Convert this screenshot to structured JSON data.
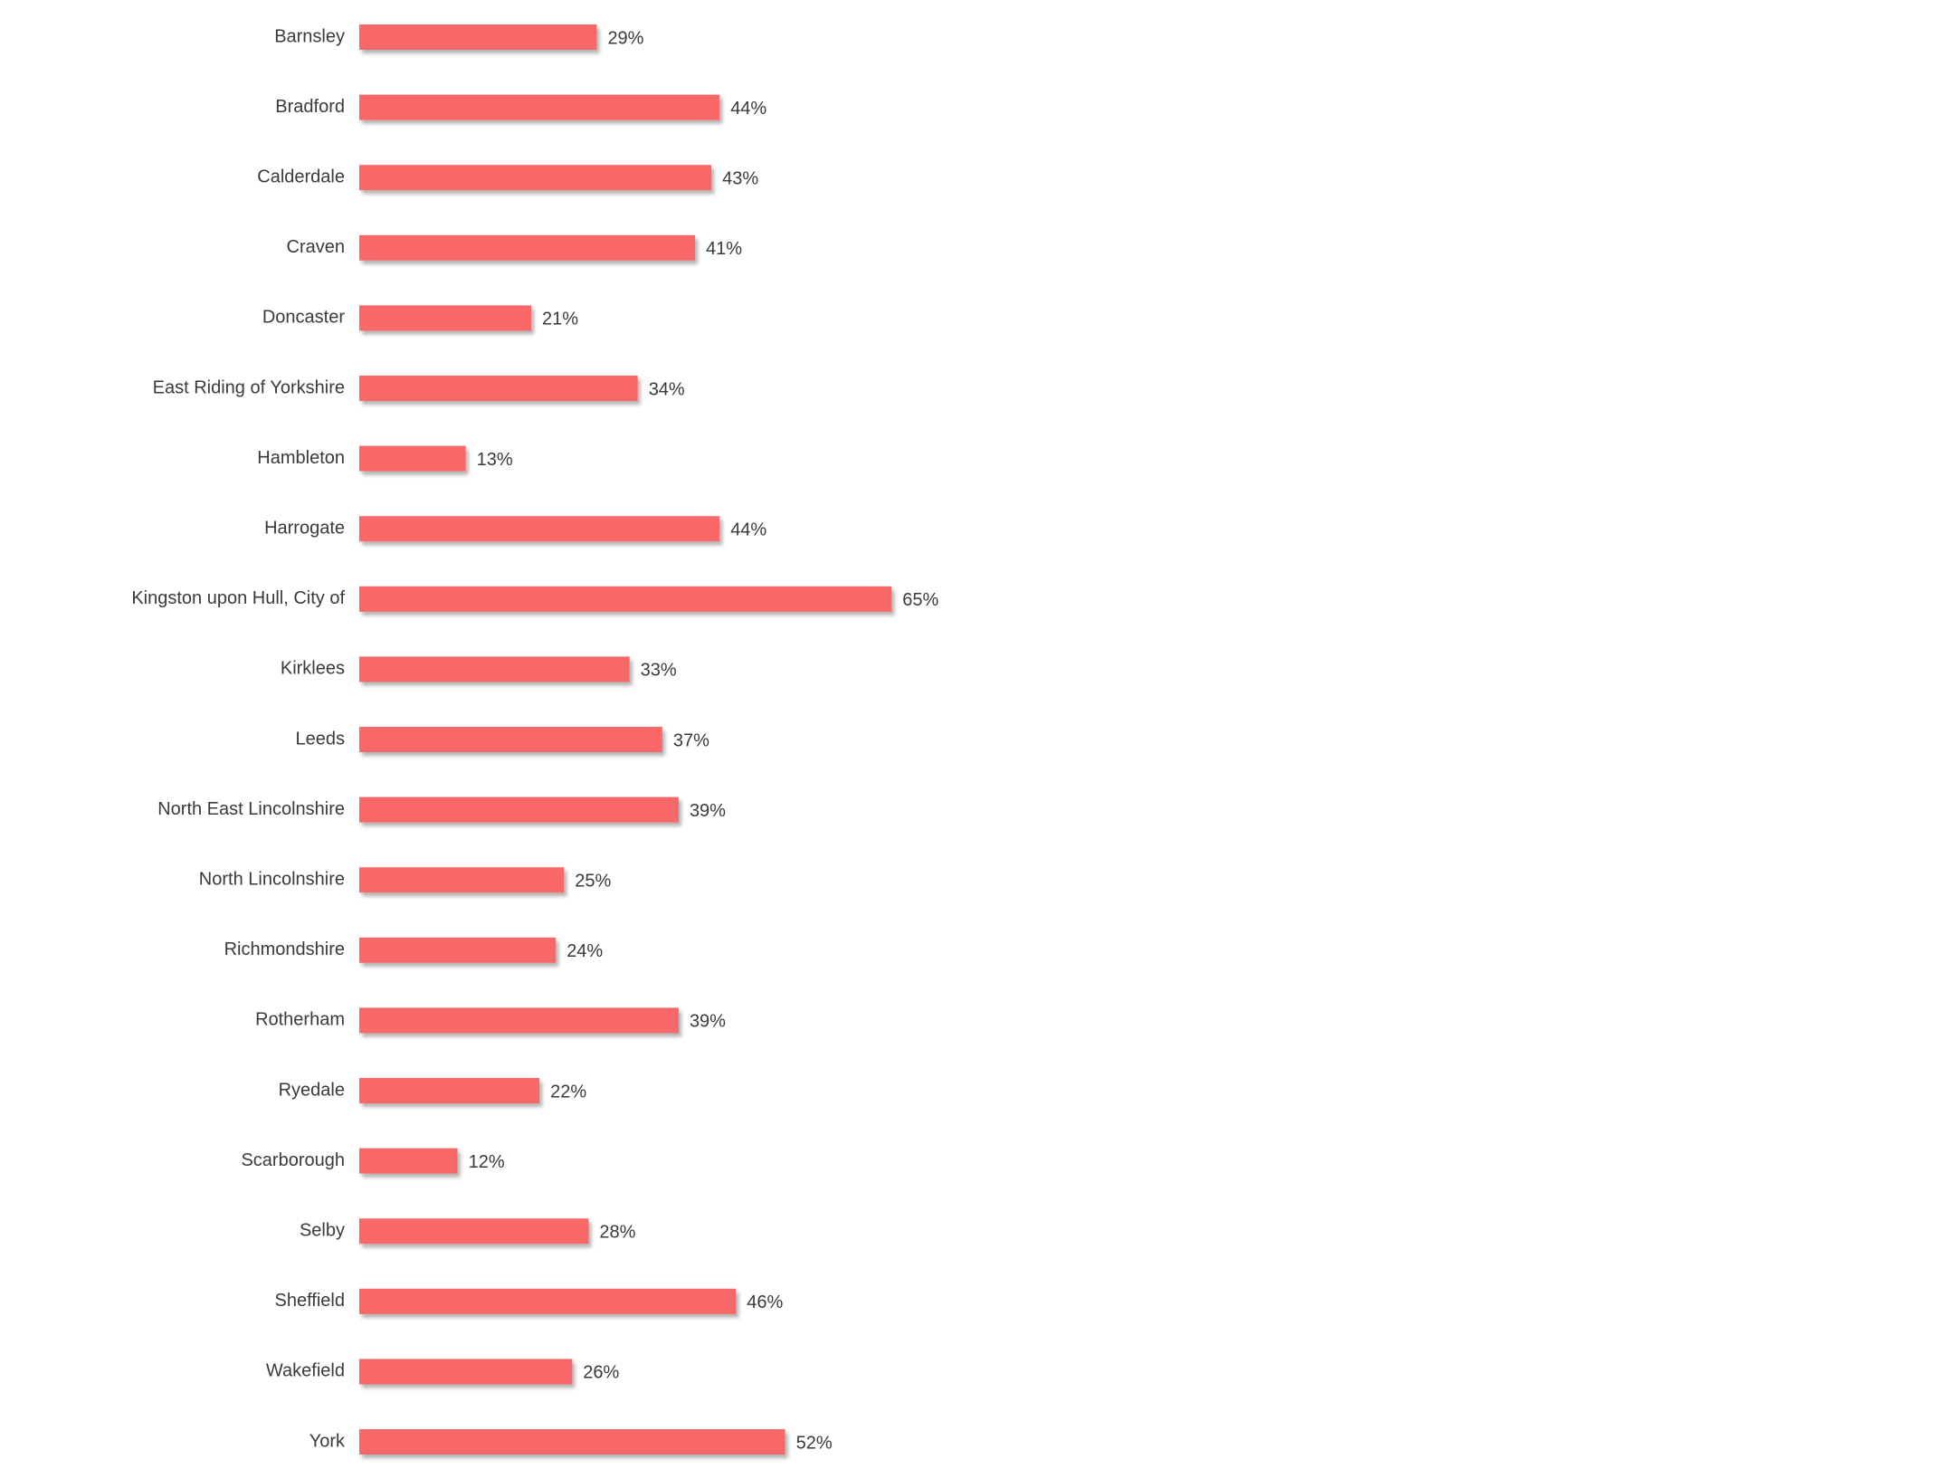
{
  "chart_data": {
    "type": "bar",
    "orientation": "horizontal",
    "categories": [
      "Barnsley",
      "Bradford",
      "Calderdale",
      "Craven",
      "Doncaster",
      "East Riding of Yorkshire",
      "Hambleton",
      "Harrogate",
      "Kingston upon Hull, City of",
      "Kirklees",
      "Leeds",
      "North East Lincolnshire",
      "North Lincolnshire",
      "Richmondshire",
      "Rotherham",
      "Ryedale",
      "Scarborough",
      "Selby",
      "Sheffield",
      "Wakefield",
      "York"
    ],
    "values": [
      29,
      44,
      43,
      41,
      21,
      34,
      13,
      44,
      65,
      33,
      37,
      39,
      25,
      24,
      39,
      22,
      12,
      28,
      46,
      26,
      52
    ],
    "value_labels": [
      "29%",
      "44%",
      "43%",
      "41%",
      "21%",
      "34%",
      "13%",
      "44%",
      "65%",
      "33%",
      "37%",
      "39%",
      "25%",
      "24%",
      "39%",
      "22%",
      "12%",
      "28%",
      "46%",
      "26%",
      "52%"
    ],
    "unit": "%",
    "xlim": [
      0,
      100
    ],
    "grid": false,
    "legend": "none",
    "bar_color": "#f96767"
  }
}
